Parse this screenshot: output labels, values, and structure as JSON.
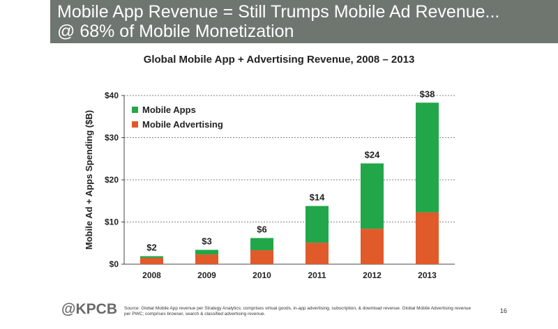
{
  "header": {
    "line1": "Mobile App Revenue = Still Trumps Mobile Ad Revenue...",
    "line2": "@ 68% of Mobile Monetization",
    "color": "#6e766f"
  },
  "chart_data": {
    "type": "bar",
    "stacked": true,
    "title": "Global Mobile App + Advertising Revenue, 2008 – 2013",
    "xlabel": "",
    "ylabel": "Mobile Ad + Apps Spending ($B)",
    "ylim": [
      0,
      40
    ],
    "yticks": [
      0,
      10,
      20,
      30,
      40
    ],
    "ytick_labels": [
      "$0",
      "$10",
      "$20",
      "$30",
      "$40"
    ],
    "grid": true,
    "legend_position": "top-left",
    "categories": [
      "2008",
      "2009",
      "2010",
      "2011",
      "2012",
      "2013"
    ],
    "series": [
      {
        "name": "Mobile Advertising",
        "color": "#e05a2a",
        "values": [
          1.5,
          2.3,
          3.3,
          5.1,
          8.4,
          12.3
        ]
      },
      {
        "name": "Mobile Apps",
        "color": "#22a64a",
        "values": [
          0.4,
          1.1,
          2.9,
          8.7,
          15.5,
          26.0
        ]
      }
    ],
    "totals_labels": [
      "$2",
      "$3",
      "$6",
      "$14",
      "$24",
      "$38"
    ]
  },
  "legend": {
    "items": [
      "Mobile Apps",
      "Mobile Advertising"
    ]
  },
  "footer": {
    "logo": "@KPCB",
    "source": "Source: Global Mobile App revenue per Strategy Analytics; comprises virtual goods, in-app advertising, subscription, & download revenue. Global Mobile Advertising revenue per PWC; comprises browser, search & classified advertising revenue.",
    "page_number": "16"
  }
}
